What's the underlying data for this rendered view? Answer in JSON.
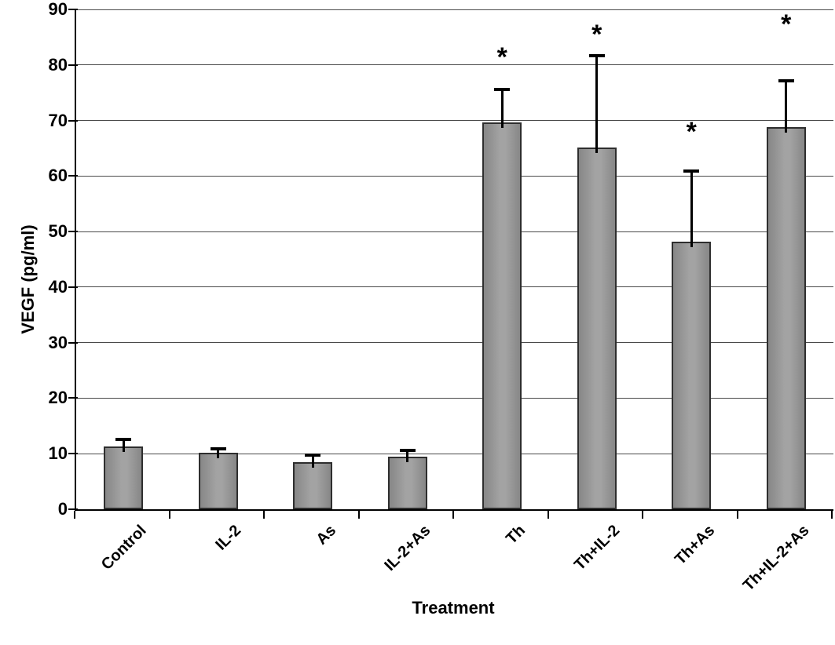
{
  "figure": {
    "kind": "scientific-bar-figure",
    "background": "#ffffff"
  },
  "chart_data": {
    "type": "bar",
    "title": "",
    "xlabel": "Treatment",
    "ylabel": "VEGF (pg/ml)",
    "ylim": [
      0,
      90
    ],
    "yticks": [
      0,
      10,
      20,
      30,
      40,
      50,
      60,
      70,
      80,
      90
    ],
    "grid": true,
    "legend_position": "none",
    "categories": [
      "Control",
      "IL-2",
      "As",
      "IL-2+As",
      "Th",
      "Th+IL-2",
      "Th+As",
      "Th+IL-2+As"
    ],
    "series": [
      {
        "name": "VEGF",
        "values": [
          11.3,
          10.2,
          8.5,
          9.5,
          69.6,
          65.1,
          48.2,
          68.8
        ],
        "errors_plus": [
          1.4,
          0.8,
          1.4,
          1.2,
          6.1,
          16.7,
          12.8,
          8.5
        ],
        "significance": [
          "",
          "",
          "",
          "",
          "*",
          "*",
          "*",
          "*"
        ],
        "sig_marker_y": [
          null,
          null,
          null,
          null,
          81.5,
          85.6,
          68.1,
          87.4
        ]
      }
    ],
    "colors": {
      "bar_fill": "#969696",
      "bar_fill_light": "#a3a3a3",
      "bar_fill_dark": "#878787",
      "bar_border": "#2e2e2e",
      "error_bar": "#000000",
      "grid": "#4a4a4a",
      "axis": "#000000",
      "text": "#000000",
      "background": "#ffffff"
    }
  }
}
